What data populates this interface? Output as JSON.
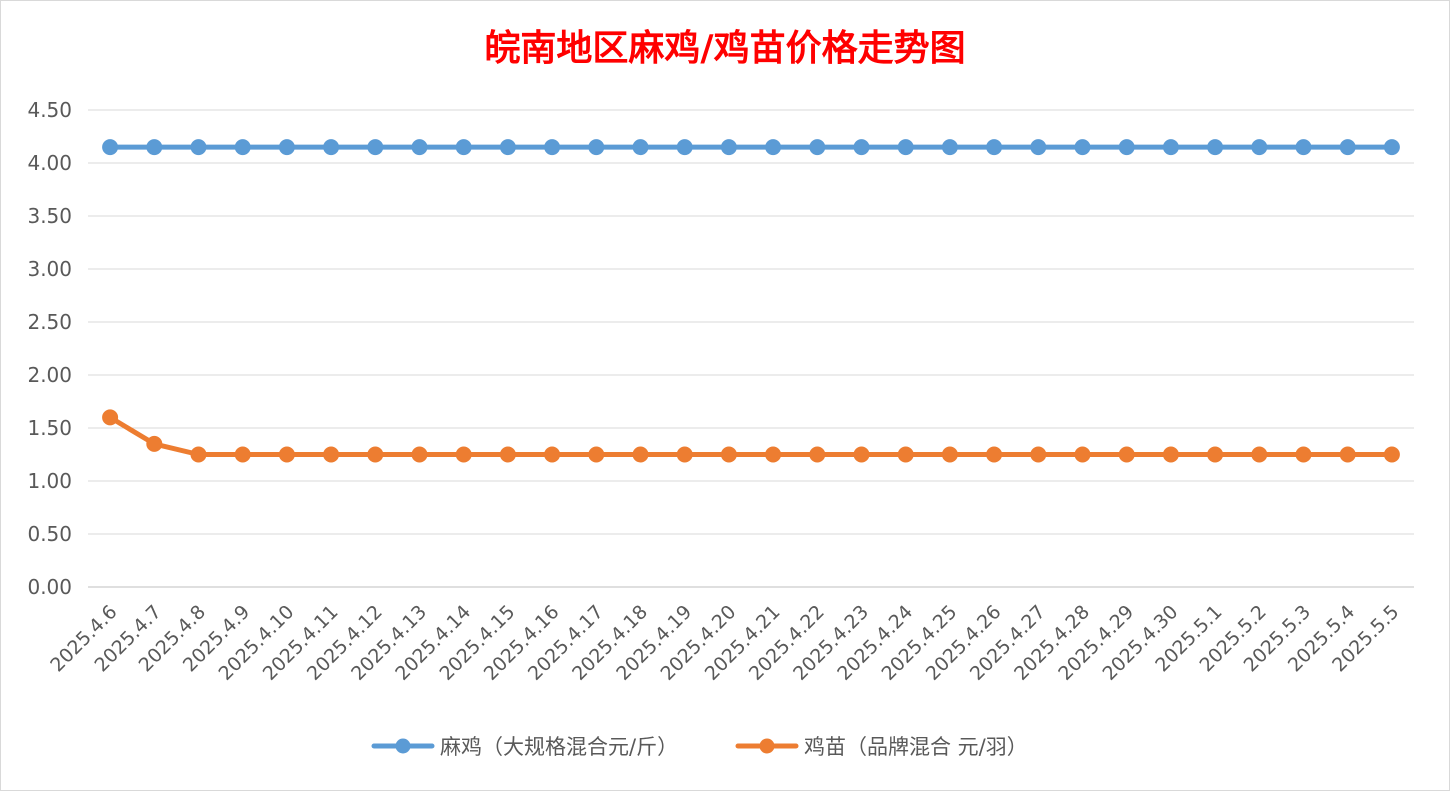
{
  "chart_data": {
    "type": "line",
    "title": "皖南地区麻鸡/鸡苗价格走势图",
    "xlabel": "",
    "ylabel": "",
    "categories": [
      "2025.4.6",
      "2025.4.7",
      "2025.4.8",
      "2025.4.9",
      "2025.4.10",
      "2025.4.11",
      "2025.4.12",
      "2025.4.13",
      "2025.4.14",
      "2025.4.15",
      "2025.4.16",
      "2025.4.17",
      "2025.4.18",
      "2025.4.19",
      "2025.4.20",
      "2025.4.21",
      "2025.4.22",
      "2025.4.23",
      "2025.4.24",
      "2025.4.25",
      "2025.4.26",
      "2025.4.27",
      "2025.4.28",
      "2025.4.29",
      "2025.4.30",
      "2025.5.1",
      "2025.5.2",
      "2025.5.3",
      "2025.5.4",
      "2025.5.5"
    ],
    "ylim": [
      0,
      4.5
    ],
    "yticks": [
      "0.00",
      "0.50",
      "1.00",
      "1.50",
      "2.00",
      "2.50",
      "3.00",
      "3.50",
      "4.00",
      "4.50"
    ],
    "grid": true,
    "legend_position": "bottom",
    "series": [
      {
        "name": "麻鸡（大规格混合元/斤）",
        "color": "#5b9bd5",
        "values": [
          4.15,
          4.15,
          4.15,
          4.15,
          4.15,
          4.15,
          4.15,
          4.15,
          4.15,
          4.15,
          4.15,
          4.15,
          4.15,
          4.15,
          4.15,
          4.15,
          4.15,
          4.15,
          4.15,
          4.15,
          4.15,
          4.15,
          4.15,
          4.15,
          4.15,
          4.15,
          4.15,
          4.15,
          4.15,
          4.15
        ]
      },
      {
        "name": "鸡苗（品牌混合 元/羽）",
        "color": "#ed7d31",
        "values": [
          1.6,
          1.35,
          1.25,
          1.25,
          1.25,
          1.25,
          1.25,
          1.25,
          1.25,
          1.25,
          1.25,
          1.25,
          1.25,
          1.25,
          1.25,
          1.25,
          1.25,
          1.25,
          1.25,
          1.25,
          1.25,
          1.25,
          1.25,
          1.25,
          1.25,
          1.25,
          1.25,
          1.25,
          1.25,
          1.25
        ]
      }
    ]
  }
}
